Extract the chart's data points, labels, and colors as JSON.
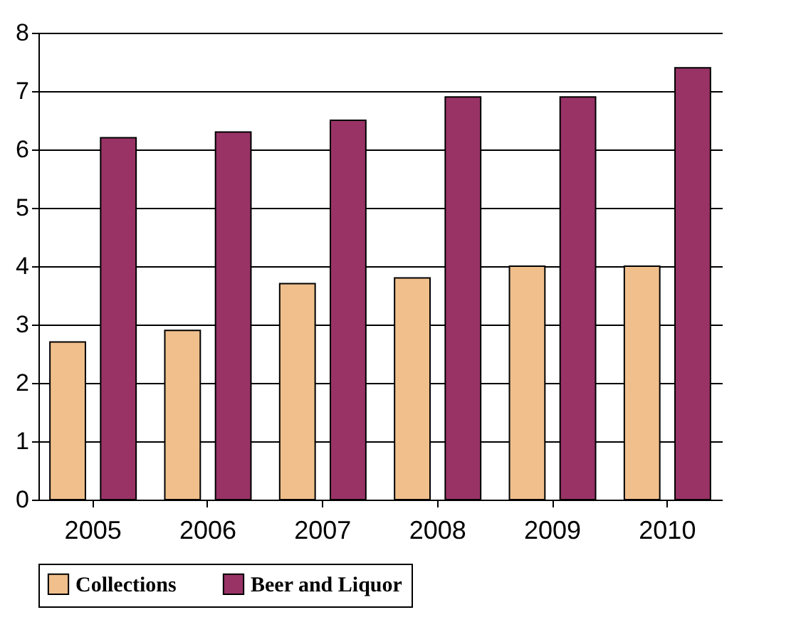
{
  "chart_data": {
    "type": "bar",
    "categories": [
      "2005",
      "2006",
      "2007",
      "2008",
      "2009",
      "2010"
    ],
    "series": [
      {
        "name": "Collections",
        "color": "#f0bf8c",
        "values": [
          2.7,
          2.9,
          3.7,
          3.8,
          4.0,
          4.0
        ]
      },
      {
        "name": "Beer and Liquor",
        "color": "#993366",
        "values": [
          6.2,
          6.3,
          6.5,
          6.9,
          6.9,
          7.4
        ]
      }
    ],
    "ylim": [
      0,
      8
    ],
    "yticks": [
      0,
      1,
      2,
      3,
      4,
      5,
      6,
      7,
      8
    ],
    "grid": "y",
    "legend": "bottom"
  }
}
